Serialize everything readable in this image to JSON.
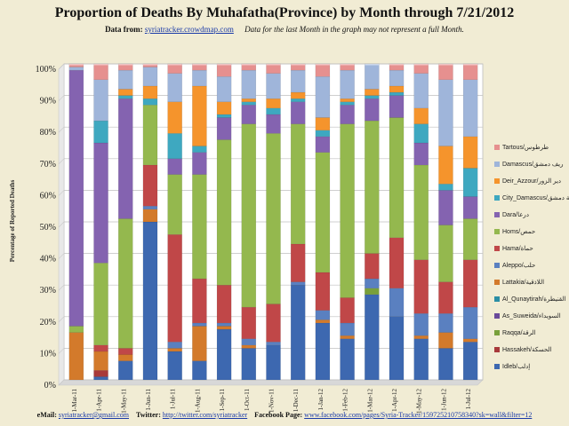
{
  "header": {
    "title": "Proportion of Deaths By Muhafatha(Province) by Month through 7/21/2012",
    "data_from_label": "Data from:",
    "data_from_link": "syriatracker.crowdmap.com",
    "note": "Data for the last Month in the graph may not represent a full Month."
  },
  "footer": {
    "email_label": "eMail:",
    "email": "syriatracker@gmail.com",
    "twitter_label": "Twitter:",
    "twitter": "http://twitter.com/syriatracker",
    "facebook_label": "Facebook  Page:",
    "facebook": "www.facebook.com/pages/Syria-Tracker/159725210758340?sk=wall&filter=12"
  },
  "chart_data": {
    "type": "bar",
    "stacked": true,
    "percent": true,
    "ylabel": "Percentage of Reported Deaths",
    "ylim": [
      0,
      100
    ],
    "yticks": [
      "0%",
      "10%",
      "20%",
      "30%",
      "40%",
      "50%",
      "60%",
      "70%",
      "80%",
      "90%",
      "100%"
    ],
    "grid": true,
    "legend_position": "right",
    "categories": [
      "1-Mar-11",
      "1-Apr-11",
      "1-May-11",
      "1-Jun-11",
      "1-Jul-11",
      "1-Aug-11",
      "1-Sep-11",
      "1-Oct-11",
      "1-Nov-11",
      "1-Dec-11",
      "1-Jan-12",
      "1-Feb-12",
      "1-Mar-12",
      "1-Apr-12",
      "1-May-12",
      "1-Jun-12",
      "1-Jul-12"
    ],
    "series": [
      {
        "name": "Idleb/إدلب",
        "color": "#3d68b0",
        "values": [
          0,
          1,
          6,
          50,
          9,
          6,
          16,
          10,
          11,
          30,
          18,
          13,
          27,
          20,
          13,
          10,
          12
        ]
      },
      {
        "name": "Hassakeh/الحسكة",
        "color": "#a8393a",
        "values": [
          0,
          2,
          0,
          0,
          0,
          0,
          0,
          0,
          0,
          0,
          0,
          0,
          0,
          0,
          0,
          0,
          0
        ]
      },
      {
        "name": "Raqqa/الرقة",
        "color": "#79a03a",
        "values": [
          0,
          0,
          0,
          0,
          0,
          0,
          0,
          0,
          0,
          0,
          0,
          0,
          2,
          0,
          0,
          0,
          0
        ]
      },
      {
        "name": "As_Suweida/السويداء",
        "color": "#6a4a9a",
        "values": [
          0,
          0,
          0,
          0,
          0,
          0,
          0,
          0,
          0,
          0,
          0,
          0,
          0,
          0,
          0,
          0,
          0
        ]
      },
      {
        "name": "Al_Qunaytirah/القنيطرة",
        "color": "#2b8fa5",
        "values": [
          0,
          0,
          0,
          0,
          0,
          0,
          0,
          0,
          0,
          0,
          0,
          0,
          0,
          0,
          0,
          0,
          0
        ]
      },
      {
        "name": "Lattakia/اللاذقية",
        "color": "#d37a2b",
        "values": [
          15,
          6,
          2,
          4,
          1,
          11,
          1,
          1,
          0,
          0,
          1,
          1,
          0,
          0,
          1,
          5,
          1
        ]
      },
      {
        "name": "Aleppo/حلب",
        "color": "#5a80c0",
        "values": [
          0,
          0,
          0,
          1,
          2,
          1,
          1,
          2,
          1,
          1,
          3,
          4,
          3,
          9,
          7,
          6,
          10
        ]
      },
      {
        "name": "Hama/حماة",
        "color": "#c04748",
        "values": [
          0,
          2,
          2,
          13,
          34,
          14,
          12,
          10,
          12,
          12,
          12,
          8,
          8,
          16,
          17,
          10,
          15
        ]
      },
      {
        "name": "Homs/حمص",
        "color": "#94b84e",
        "values": [
          2,
          26,
          41,
          19,
          19,
          33,
          46,
          58,
          54,
          38,
          38,
          55,
          42,
          38,
          30,
          18,
          13
        ]
      },
      {
        "name": "Dara/درعا",
        "color": "#8463b0",
        "values": [
          81,
          38,
          38,
          0,
          5,
          7,
          7,
          6,
          6,
          7,
          5,
          6,
          7,
          7,
          7,
          11,
          7
        ]
      },
      {
        "name": "City_Damascus/مدينة دمشق",
        "color": "#3ea8c0",
        "values": [
          0,
          7,
          1,
          2,
          8,
          2,
          1,
          1,
          2,
          1,
          2,
          1,
          1,
          1,
          6,
          2,
          9
        ]
      },
      {
        "name": "Deir_Azzour/دير الزور",
        "color": "#f5942c",
        "values": [
          0,
          0,
          2,
          4,
          10,
          19,
          4,
          1,
          3,
          2,
          4,
          1,
          2,
          2,
          5,
          12,
          10
        ]
      },
      {
        "name": "Damascus/ريف دمشق",
        "color": "#9fb5da",
        "values": [
          1,
          13,
          6,
          6,
          9,
          5,
          8,
          9,
          8,
          7,
          13,
          9,
          8,
          5,
          11,
          21,
          18
        ]
      },
      {
        "name": "Tartous/طرطوس",
        "color": "#e6908f",
        "values": [
          1,
          5,
          2,
          1,
          3,
          2,
          4,
          2,
          3,
          2,
          4,
          2,
          0,
          2,
          3,
          5,
          5
        ]
      }
    ]
  }
}
